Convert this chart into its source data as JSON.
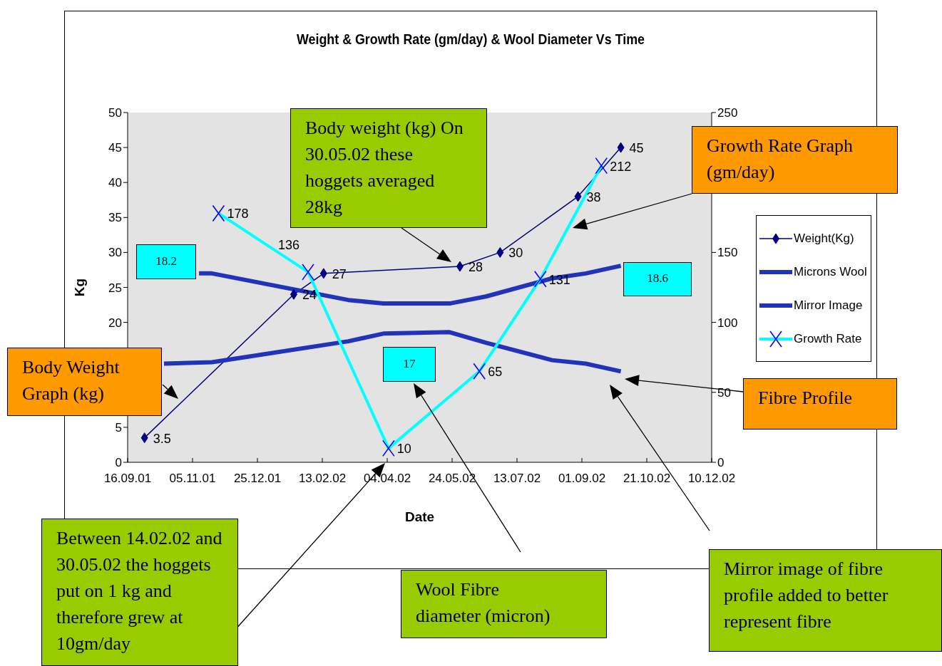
{
  "chart_data": {
    "type": "line",
    "title": "Weight & Growth Rate (gm/day) & Wool Diameter Vs Time",
    "xlabel": "Date",
    "ylabel": "Kg",
    "xlim": [
      "2001-09-16",
      "2002-12-10"
    ],
    "xticks": [
      {
        "value": "2001-09-16",
        "label": "16.09.01"
      },
      {
        "value": "2001-11-05",
        "label": "05.11.01"
      },
      {
        "value": "2001-12-25",
        "label": "25.12.01"
      },
      {
        "value": "2002-02-13",
        "label": "13.02.02"
      },
      {
        "value": "2002-04-04",
        "label": "04.04.02"
      },
      {
        "value": "2002-05-24",
        "label": "24.05.02"
      },
      {
        "value": "2002-07-13",
        "label": "13.07.02"
      },
      {
        "value": "2002-09-01",
        "label": "01.09.02"
      },
      {
        "value": "2002-10-21",
        "label": "21.10.02"
      },
      {
        "value": "2002-12-10",
        "label": "10.12.02"
      }
    ],
    "ylim": [
      0,
      50
    ],
    "yticks": [
      0,
      5,
      20,
      25,
      30,
      35,
      40,
      45,
      50
    ],
    "y2lim": [
      0,
      250
    ],
    "y2ticks": [
      0,
      50,
      100,
      150,
      {
        "value": 200,
        "label": null
      },
      250
    ],
    "grid": false,
    "legend": "right",
    "series": [
      {
        "name": "Weight(Kg)",
        "color": "#000080",
        "marker": "diamond",
        "x": [
          "2001-09-29",
          "2002-01-22",
          "2002-02-14",
          "2002-05-30",
          "2002-06-30",
          "2002-08-29",
          "2002-10-01"
        ],
        "values": [
          3.5,
          24,
          27,
          28,
          30,
          38,
          45
        ],
        "value_labels": [
          "3.5",
          "24",
          "27",
          "28",
          "30",
          "38",
          "45"
        ]
      },
      {
        "name": "Microns Wool",
        "color": "#2233bb",
        "marker": "none",
        "x": [
          "2001-11-10",
          "2001-11-20",
          "2002-03-05",
          "2002-04-01",
          "2002-05-22",
          "2002-06-19",
          "2002-08-09",
          "2002-09-04",
          "2002-10-01"
        ],
        "values": [
          27,
          27,
          23.2,
          22.7,
          22.7,
          23.7,
          26.3,
          27,
          28.1
        ]
      },
      {
        "name": "Mirror Image",
        "color": "#2233bb",
        "marker": "none",
        "x": [
          "2001-10-14",
          "2001-11-20",
          "2002-03-05",
          "2002-04-01",
          "2002-05-22",
          "2002-06-19",
          "2002-08-09",
          "2002-09-04",
          "2002-10-01"
        ],
        "values": [
          14.1,
          14.3,
          17.3,
          18.4,
          18.6,
          17.1,
          14.6,
          14.1,
          13.0
        ]
      },
      {
        "name": "Growth Rate",
        "color": "#00ffff",
        "marker": "cross",
        "axis": "y2",
        "x": [
          "2001-11-25",
          "2002-02-02",
          "2002-04-05",
          "2002-06-14",
          "2002-07-31",
          "2002-09-16"
        ],
        "values": [
          178,
          136,
          10,
          65,
          131,
          212
        ],
        "value_labels": [
          "178",
          "136",
          "10",
          "65",
          "131",
          "212"
        ]
      }
    ],
    "annotations": [
      "Body weight (kg) On 30.05.02 these hoggets averaged 28kg",
      "Growth Rate Graph (gm/day)",
      "18.2",
      "18.6",
      "17",
      "Body Weight Graph (kg)",
      "Fibre Profile",
      "Between 14.02.02 and 30.05.02 the hoggets put on 1 kg and therefore grew at 10gm/day",
      "Wool Fibre diameter (micron)",
      "Mirror image of fibre profile added to better represent fibre"
    ]
  }
}
